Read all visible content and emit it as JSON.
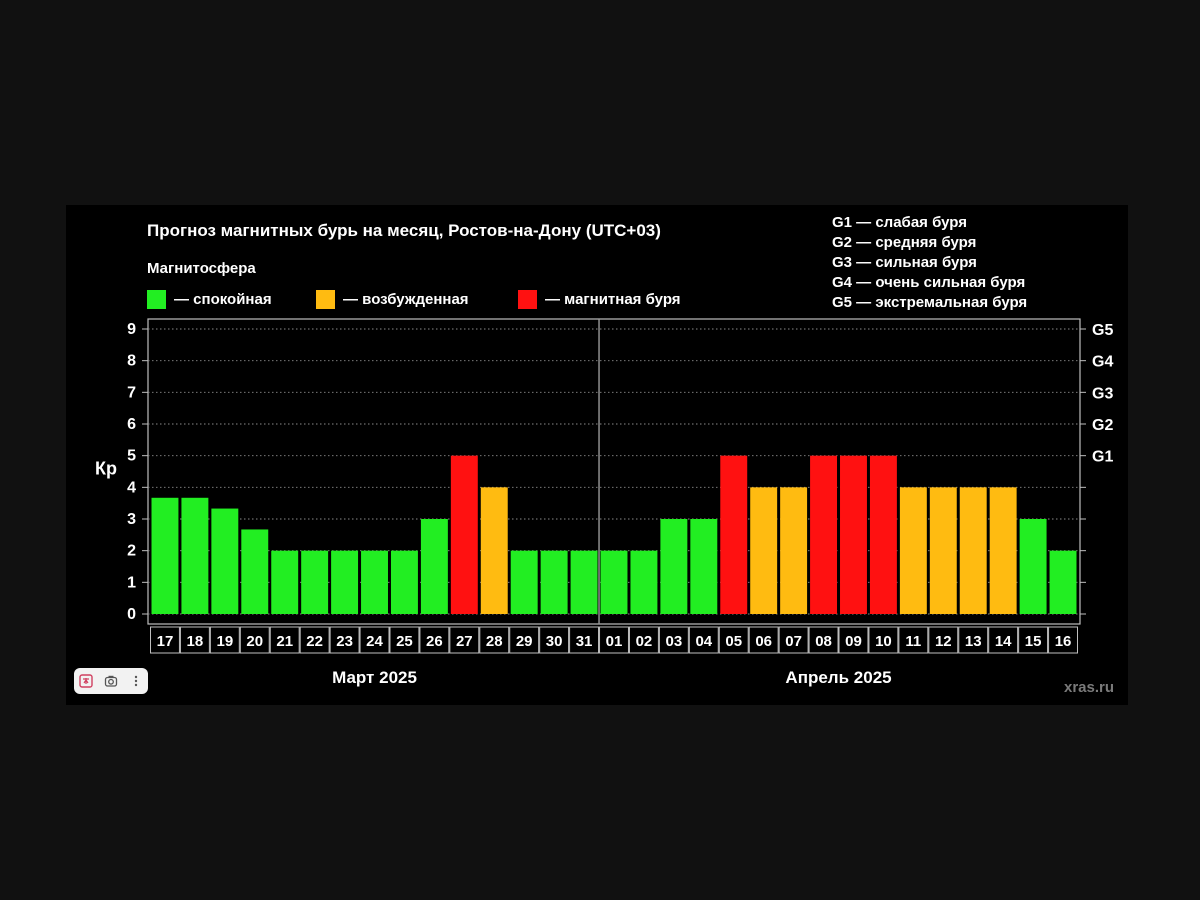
{
  "chart_data": {
    "type": "bar",
    "title": "Прогноз магнитных бурь на месяц, Ростов-на-Дону (UTC+03)",
    "legend_heading": "Магнитосфера",
    "legend": [
      {
        "label": "— спокойная",
        "color": "#22ee22"
      },
      {
        "label": "— возбужденная",
        "color": "#ffbb11"
      },
      {
        "label": "— магнитная буря",
        "color": "#ff1111"
      }
    ],
    "storm_scale": [
      "G1 — слабая буря",
      "G2 — средняя буря",
      "G3 — сильная буря",
      "G4 — очень сильная буря",
      "G5 — экстремальная буря"
    ],
    "ylabel": "Кр",
    "ylim": [
      0,
      9
    ],
    "y_ticks": [
      "0",
      "1",
      "2",
      "3",
      "4",
      "5",
      "6",
      "7",
      "8",
      "9"
    ],
    "right_ticks": [
      {
        "value": 5,
        "label": "G1"
      },
      {
        "value": 6,
        "label": "G2"
      },
      {
        "value": 7,
        "label": "G3"
      },
      {
        "value": 8,
        "label": "G4"
      },
      {
        "value": 9,
        "label": "G5"
      }
    ],
    "grid": true,
    "categories": [
      "17",
      "18",
      "19",
      "20",
      "21",
      "22",
      "23",
      "24",
      "25",
      "26",
      "27",
      "28",
      "29",
      "30",
      "31",
      "01",
      "02",
      "03",
      "04",
      "05",
      "06",
      "07",
      "08",
      "09",
      "10",
      "11",
      "12",
      "13",
      "14",
      "15",
      "16"
    ],
    "values": [
      3.67,
      3.67,
      3.33,
      2.67,
      2,
      2,
      2,
      2,
      2,
      3,
      5,
      4,
      2,
      2,
      2,
      2,
      2,
      3,
      3,
      5,
      4,
      4,
      5,
      5,
      5,
      4,
      4,
      4,
      4,
      3,
      2
    ],
    "levels": [
      "calm",
      "calm",
      "calm",
      "calm",
      "calm",
      "calm",
      "calm",
      "calm",
      "calm",
      "calm",
      "storm",
      "excited",
      "calm",
      "calm",
      "calm",
      "calm",
      "calm",
      "calm",
      "calm",
      "storm",
      "excited",
      "excited",
      "storm",
      "storm",
      "storm",
      "excited",
      "excited",
      "excited",
      "excited",
      "calm",
      "calm"
    ],
    "level_colors": {
      "calm": "#22ee22",
      "excited": "#ffbb11",
      "storm": "#ff1111"
    },
    "month_groups": [
      {
        "label": "Март 2025",
        "count": 15
      },
      {
        "label": "Апрель 2025",
        "count": 16
      }
    ]
  },
  "source": "xras.ru",
  "toolbar": {
    "icons": [
      "translate-icon",
      "camera-icon",
      "more-vertical-icon"
    ]
  }
}
